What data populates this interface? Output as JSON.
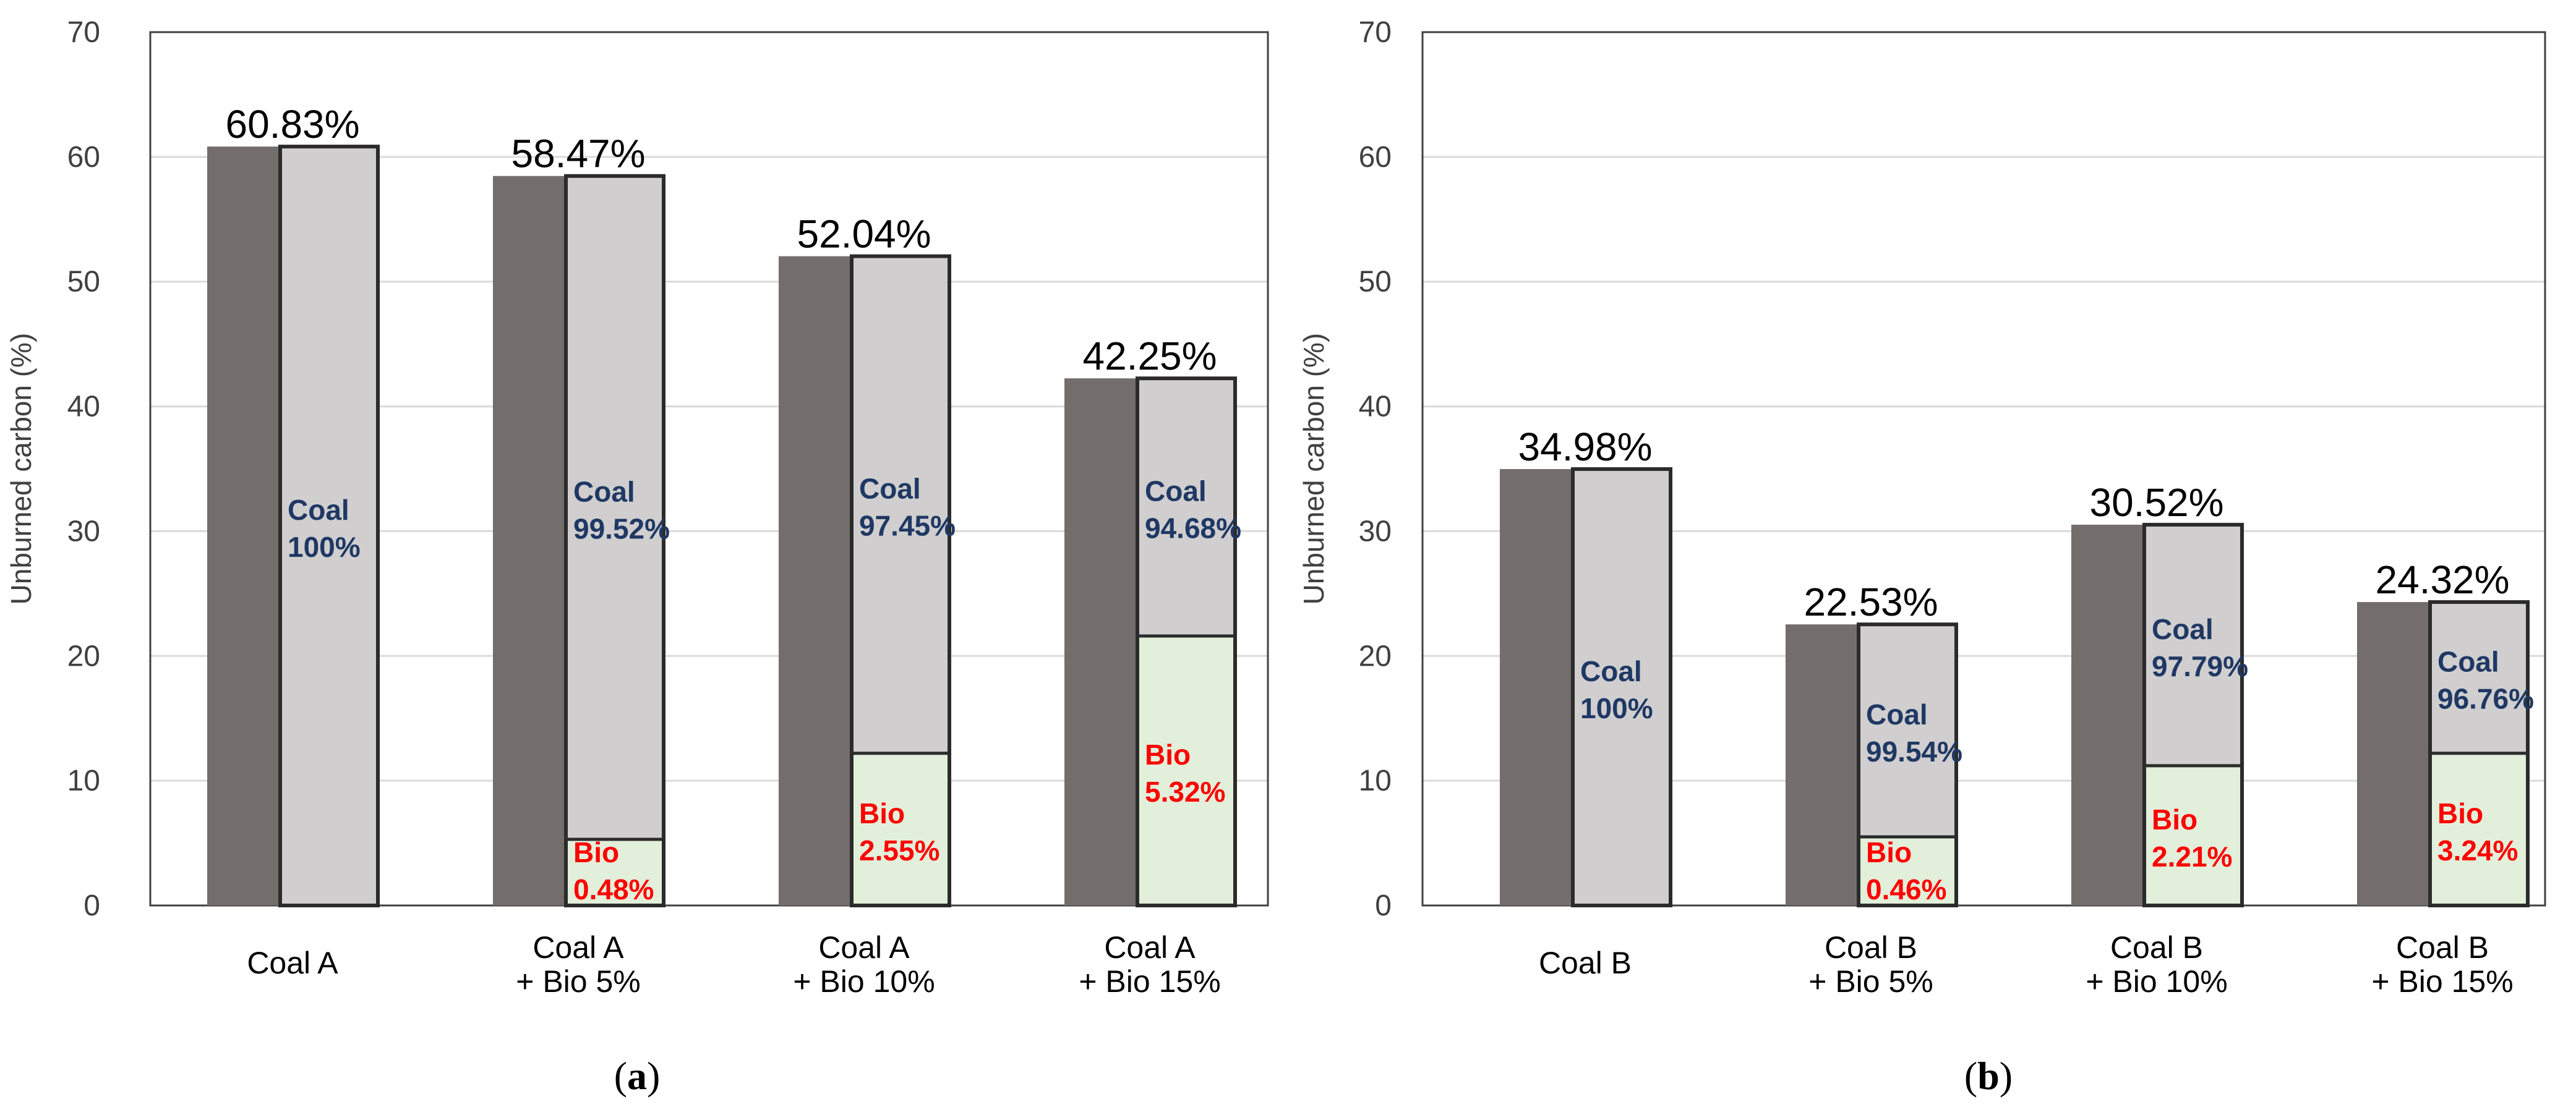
{
  "chart_data": [
    {
      "type": "bar",
      "panel_label": "a",
      "ylabel": "Unburned carbon (%)",
      "ylim": [
        0,
        70
      ],
      "yticks": [
        0,
        10,
        20,
        30,
        40,
        50,
        60,
        70
      ],
      "grid": true,
      "groups": [
        {
          "label_lines": [
            "Coal A"
          ],
          "total": 60.83,
          "total_label": "60.83%",
          "bio_value": 0,
          "coal_label": [
            "Coal",
            "100%"
          ],
          "bio_label": null
        },
        {
          "label_lines": [
            "Coal A",
            "+ Bio 5%"
          ],
          "total": 58.47,
          "total_label": "58.47%",
          "bio_value": 5.3,
          "coal_label": [
            "Coal",
            "99.52%"
          ],
          "bio_label": [
            "Bio",
            "0.48%"
          ]
        },
        {
          "label_lines": [
            "Coal A",
            "+ Bio 10%"
          ],
          "total": 52.04,
          "total_label": "52.04%",
          "bio_value": 12.2,
          "coal_label": [
            "Coal",
            "97.45%"
          ],
          "bio_label": [
            "Bio",
            "2.55%"
          ]
        },
        {
          "label_lines": [
            "Coal A",
            "+ Bio 15%"
          ],
          "total": 42.25,
          "total_label": "42.25%",
          "bio_value": 21.6,
          "coal_label": [
            "Coal",
            "94.68%"
          ],
          "bio_label": [
            "Bio",
            "5.32%"
          ]
        }
      ]
    },
    {
      "type": "bar",
      "panel_label": "b",
      "ylabel": "Unburned carbon (%)",
      "ylim": [
        0,
        70
      ],
      "yticks": [
        0,
        10,
        20,
        30,
        40,
        50,
        60,
        70
      ],
      "grid": true,
      "groups": [
        {
          "label_lines": [
            "Coal B"
          ],
          "total": 34.98,
          "total_label": "34.98%",
          "bio_value": 0,
          "coal_label": [
            "Coal",
            "100%"
          ],
          "bio_label": null
        },
        {
          "label_lines": [
            "Coal B",
            "+ Bio 5%"
          ],
          "total": 22.53,
          "total_label": "22.53%",
          "bio_value": 5.5,
          "coal_label": [
            "Coal",
            "99.54%"
          ],
          "bio_label": [
            "Bio",
            "0.46%"
          ]
        },
        {
          "label_lines": [
            "Coal B",
            "+ Bio 10%"
          ],
          "total": 30.52,
          "total_label": "30.52%",
          "bio_value": 11.2,
          "coal_label": [
            "Coal",
            "97.79%"
          ],
          "bio_label": [
            "Bio",
            "2.21%"
          ]
        },
        {
          "label_lines": [
            "Coal B",
            "+ Bio 15%"
          ],
          "total": 24.32,
          "total_label": "24.32%",
          "bio_value": 12.2,
          "coal_label": [
            "Coal",
            "96.76%"
          ],
          "bio_label": [
            "Bio",
            "3.24%"
          ]
        }
      ]
    }
  ],
  "colors": {
    "total_bar": "#736E6C",
    "coal_bar": "#D0CECE",
    "bio_bar": "#E2EFDA",
    "bar_edge": "#2B2B2B",
    "coal_text": "#1F3864",
    "bio_text": "#FF0000",
    "grid": "#D9D9D9"
  }
}
